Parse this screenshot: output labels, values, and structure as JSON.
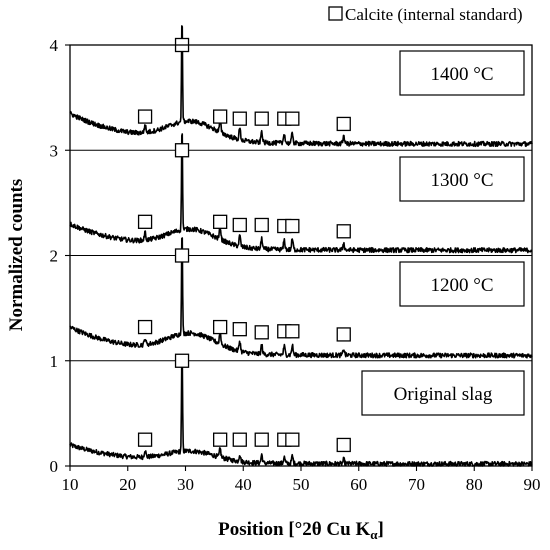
{
  "chart_data": {
    "type": "line",
    "legend": {
      "marker": "open-square",
      "label": "Calcite (internal standard)",
      "placement": "top-right"
    },
    "xlabel": {
      "main": "Position [°2θ Cu K",
      "sub": "α",
      "close": "]"
    },
    "ylabel": "Normalized counts",
    "xlim": [
      10,
      90
    ],
    "ylim": [
      0,
      4
    ],
    "xticks": [
      "10",
      "20",
      "30",
      "40",
      "50",
      "60",
      "70",
      "80",
      "90"
    ],
    "yticks": [
      "0",
      "1",
      "2",
      "3",
      "4"
    ],
    "grid": false,
    "calcite_peaks_2theta": [
      23.0,
      29.4,
      36.0,
      39.4,
      43.2,
      47.1,
      48.5,
      57.4
    ],
    "series": [
      {
        "name": "Original slag",
        "offset": 0,
        "background_start": 0.2,
        "background_end": 0.02,
        "hump_height": 0.1,
        "peak_heights": [
          0.07,
          1.0,
          0.08,
          0.07,
          0.08,
          0.06,
          0.07,
          0.04
        ],
        "marker_levels": [
          0.25,
          1.0,
          0.25,
          0.25,
          0.25,
          0.25,
          0.25,
          0.2
        ]
      },
      {
        "name": "1200 °C",
        "offset": 1,
        "background_start": 0.32,
        "background_end": 0.05,
        "hump_height": 0.18,
        "peak_heights": [
          0.06,
          1.0,
          0.12,
          0.1,
          0.09,
          0.08,
          0.09,
          0.06
        ],
        "marker_levels": [
          1.32,
          2.0,
          1.32,
          1.3,
          1.27,
          1.28,
          1.28,
          1.25
        ]
      },
      {
        "name": "1300 °C",
        "offset": 2,
        "background_start": 0.3,
        "background_end": 0.05,
        "hump_height": 0.17,
        "peak_heights": [
          0.07,
          1.0,
          0.12,
          0.1,
          0.1,
          0.09,
          0.1,
          0.07
        ],
        "marker_levels": [
          2.32,
          3.0,
          2.32,
          2.29,
          2.29,
          2.28,
          2.28,
          2.23
        ]
      },
      {
        "name": "1400 °C",
        "offset": 3,
        "background_start": 0.35,
        "background_end": 0.06,
        "hump_height": 0.18,
        "peak_heights": [
          0.07,
          1.0,
          0.12,
          0.11,
          0.11,
          0.1,
          0.1,
          0.08
        ],
        "marker_levels": [
          3.32,
          4.0,
          3.32,
          3.3,
          3.3,
          3.3,
          3.3,
          3.25
        ]
      }
    ]
  }
}
